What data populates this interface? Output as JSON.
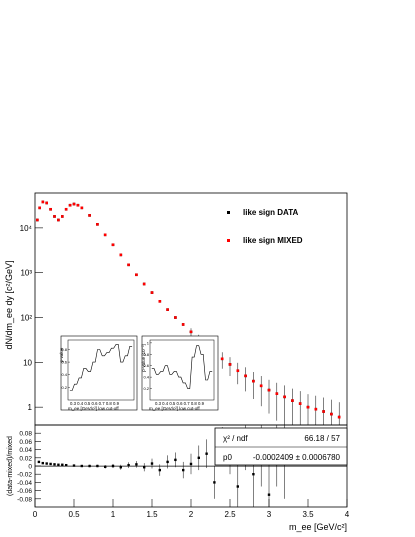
{
  "chart_data": [
    {
      "type": "scatter",
      "title": "",
      "xlabel": "",
      "ylabel": "dN/dm_ee dy [c²/GeV]",
      "xlim": [
        0,
        4
      ],
      "ylim": [
        0.4,
        60000
      ],
      "yscale": "log",
      "legend_position": "top-right",
      "y_tick_labels": [
        "1",
        "10",
        "10²",
        "10³",
        "10⁴"
      ],
      "y_tick_values": [
        1,
        10,
        100,
        1000,
        10000
      ],
      "series": [
        {
          "name": "like sign DATA",
          "color": "#000000",
          "x": [
            0.03,
            0.06,
            0.1,
            0.15,
            0.2,
            0.25,
            0.3,
            0.35,
            0.4,
            0.45,
            0.5,
            0.55,
            0.6,
            0.7,
            0.8,
            0.9,
            1.0,
            1.1,
            1.2,
            1.3,
            1.4,
            1.5,
            1.6,
            1.7,
            1.8,
            1.9,
            2.0,
            2.1,
            2.2,
            2.3,
            2.4,
            2.5,
            2.6,
            2.7,
            2.8,
            2.9,
            3.0,
            3.1,
            3.2,
            3.3,
            3.4,
            3.5,
            3.6,
            3.7,
            3.8,
            3.9
          ],
          "y": [
            15000,
            28000,
            38000,
            36000,
            26000,
            18000,
            15000,
            18000,
            26000,
            32000,
            34000,
            32000,
            28000,
            19000,
            12000,
            7000,
            4200,
            2500,
            1500,
            900,
            560,
            360,
            230,
            150,
            100,
            70,
            48,
            33,
            24,
            17,
            12,
            9,
            6.5,
            5,
            3.8,
            3.0,
            2.4,
            2.0,
            1.7,
            1.4,
            1.2,
            1.0,
            0.9,
            0.8,
            0.7,
            0.6
          ]
        },
        {
          "name": "like sign MIXED",
          "color": "#ff0000",
          "x": [
            0.03,
            0.06,
            0.1,
            0.15,
            0.2,
            0.25,
            0.3,
            0.35,
            0.4,
            0.45,
            0.5,
            0.55,
            0.6,
            0.7,
            0.8,
            0.9,
            1.0,
            1.1,
            1.2,
            1.3,
            1.4,
            1.5,
            1.6,
            1.7,
            1.8,
            1.9,
            2.0,
            2.1,
            2.2,
            2.3,
            2.4,
            2.5,
            2.6,
            2.7,
            2.8,
            2.9,
            3.0,
            3.1,
            3.2,
            3.3,
            3.4,
            3.5,
            3.6,
            3.7,
            3.8,
            3.9
          ],
          "y": [
            15000,
            28000,
            38000,
            36000,
            26000,
            18000,
            15000,
            18000,
            26000,
            32000,
            34000,
            32000,
            28000,
            19000,
            12000,
            7000,
            4200,
            2500,
            1500,
            900,
            560,
            360,
            230,
            150,
            100,
            70,
            48,
            33,
            24,
            17,
            12,
            9,
            6.5,
            5,
            3.8,
            3.0,
            2.4,
            2.0,
            1.7,
            1.4,
            1.2,
            1.0,
            0.9,
            0.8,
            0.7,
            0.6
          ]
        }
      ]
    },
    {
      "type": "scatter",
      "title": "",
      "xlabel": "m_ee [GeV/c²]",
      "ylabel": "(data-mixed)/mixed",
      "xlim": [
        0,
        4
      ],
      "ylim": [
        -0.1,
        0.1
      ],
      "x_tick_labels": [
        "0",
        "0.5",
        "1",
        "1.5",
        "2",
        "2.5",
        "3",
        "3.5",
        "4"
      ],
      "y_tick_labels": [
        "-0.08",
        "-0.06",
        "-0.04",
        "-0.02",
        "0",
        "0.02",
        "0.04",
        "0.06",
        "0.08"
      ],
      "y_tick_values": [
        -0.08,
        -0.06,
        -0.04,
        -0.02,
        0,
        0.02,
        0.04,
        0.06,
        0.08
      ],
      "fit": {
        "p0": -0.0002409
      },
      "series": [
        {
          "name": "",
          "color": "#000000",
          "x": [
            0.05,
            0.1,
            0.15,
            0.2,
            0.25,
            0.3,
            0.35,
            0.4,
            0.5,
            0.6,
            0.7,
            0.8,
            0.9,
            1.0,
            1.1,
            1.2,
            1.3,
            1.4,
            1.5,
            1.6,
            1.7,
            1.8,
            1.9,
            2.0,
            2.1,
            2.2,
            2.3,
            2.4,
            2.5,
            2.6,
            2.7,
            2.8,
            2.9,
            3.0,
            3.1,
            3.2
          ],
          "y": [
            0.01,
            0.007,
            0.006,
            0.005,
            0.004,
            0.003,
            0.003,
            0.002,
            0.001,
            0.0,
            0.0,
            0.0,
            -0.002,
            0.0,
            -0.003,
            0.002,
            0.004,
            -0.003,
            0.006,
            -0.01,
            0.01,
            0.015,
            -0.01,
            0.005,
            0.02,
            0.03,
            -0.04,
            0.05,
            0.03,
            -0.05,
            0.06,
            -0.02,
            0.04,
            -0.07,
            0.05,
            0.02
          ],
          "err": [
            0.002,
            0.002,
            0.002,
            0.002,
            0.002,
            0.002,
            0.002,
            0.002,
            0.002,
            0.002,
            0.003,
            0.003,
            0.004,
            0.005,
            0.006,
            0.007,
            0.008,
            0.01,
            0.012,
            0.014,
            0.016,
            0.018,
            0.02,
            0.025,
            0.03,
            0.035,
            0.04,
            0.045,
            0.05,
            0.06,
            0.07,
            0.08,
            0.09,
            0.1,
            0.1,
            0.1
          ]
        }
      ]
    }
  ],
  "legend": {
    "data_label": "like sign DATA",
    "mixed_label": "like sign MIXED"
  },
  "stats_box": {
    "chi2_label": "χ² / ndf",
    "chi2_value": "66.18 / 57",
    "p0_label": "p0",
    "p0_value": "-0.0002409 ± 0.0006780"
  },
  "inset1": {
    "ylabel": "p-value",
    "xlabel": "m_ee [GeV/c²] low cut-off",
    "x_ticks": "0.3 0.4 0.5 0.6 0.7 0.8 0.9",
    "y_tick_labels": [
      "0.2",
      "0.4",
      "0.6",
      "0.8"
    ],
    "y_tick_values": [
      0.2,
      0.4,
      0.6,
      0.8
    ],
    "xlim": [
      0.25,
      0.95
    ],
    "ylim": [
      0,
      0.95
    ],
    "values": [
      0.15,
      0.15,
      0.25,
      0.25,
      0.35,
      0.35,
      0.5,
      0.5,
      0.45,
      0.45,
      0.6,
      0.6,
      0.8,
      0.8,
      0.7,
      0.7,
      0.75,
      0.75,
      0.82,
      0.82,
      0.88,
      0.88,
      0.6,
      0.6,
      0.7,
      0.7,
      0.85,
      0.85
    ]
  },
  "inset2": {
    "ylabel": "p-value [10⁻³]",
    "xlabel": "m_ee [GeV/c²] low cut-off",
    "x_ticks": "0.3 0.4 0.5 0.6 0.7 0.8 0.9",
    "y_tick_labels": [
      "0.2",
      "0.4",
      "0.6",
      "0.8",
      "1"
    ],
    "y_tick_values": [
      0.2,
      0.4,
      0.6,
      0.8,
      1.0
    ],
    "xlim": [
      0.25,
      0.95
    ],
    "ylim": [
      0,
      1.05
    ],
    "values": [
      0.55,
      0.55,
      0.45,
      0.45,
      0.5,
      0.5,
      0.6,
      0.6,
      0.45,
      0.45,
      0.5,
      0.5,
      0.4,
      0.4,
      0.3,
      0.3,
      0.2,
      0.2,
      0.75,
      0.75,
      0.95,
      0.95,
      0.8,
      0.8,
      0.35,
      0.35,
      0.5,
      0.5
    ]
  }
}
